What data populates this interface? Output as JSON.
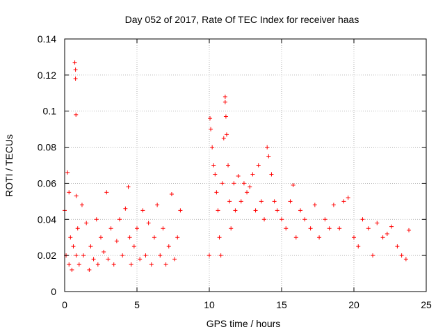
{
  "chart_data": {
    "type": "scatter",
    "title": "Day 052 of 2017, Rate Of TEC Index for receiver haas",
    "xlabel": "GPS time / hours",
    "ylabel": "ROTI / TECUs",
    "xlim": [
      0,
      25
    ],
    "ylim": [
      0,
      0.14
    ],
    "xticks": [
      "0",
      "5",
      "10",
      "15",
      "20",
      "25"
    ],
    "yticks": [
      "0",
      "0.02",
      "0.04",
      "0.06",
      "0.08",
      "0.1",
      "0.12",
      "0.14"
    ],
    "grid": true,
    "marker": "+",
    "color": "#ff0000",
    "series": [
      {
        "x": [
          0.0,
          0.1,
          0.2,
          0.3,
          0.3,
          0.4,
          0.5,
          0.6,
          0.7,
          0.75,
          0.75,
          0.78,
          0.8,
          0.8,
          0.9,
          1.0,
          1.2,
          1.3,
          1.5,
          1.7,
          1.8,
          2.0,
          2.2,
          2.3,
          2.5,
          2.7,
          2.9,
          3.0,
          3.2,
          3.4,
          3.6,
          3.8,
          4.0,
          4.2,
          4.4,
          4.5,
          4.6,
          4.8,
          5.0,
          5.2,
          5.4,
          5.6,
          5.8,
          6.0,
          6.2,
          6.4,
          6.6,
          6.8,
          7.0,
          7.2,
          7.4,
          7.6,
          7.8,
          8.0,
          10.0,
          10.05,
          10.1,
          10.2,
          10.3,
          10.4,
          10.5,
          10.6,
          10.7,
          10.8,
          10.9,
          11.0,
          11.1,
          11.1,
          11.15,
          11.2,
          11.3,
          11.4,
          11.5,
          11.7,
          11.8,
          12.0,
          12.2,
          12.4,
          12.6,
          12.8,
          13.0,
          13.2,
          13.4,
          13.6,
          13.8,
          14.0,
          14.1,
          14.3,
          14.5,
          14.7,
          15.0,
          15.3,
          15.6,
          15.8,
          16.0,
          16.3,
          16.6,
          17.0,
          17.3,
          17.6,
          18.0,
          18.3,
          18.6,
          19.0,
          19.3,
          19.6,
          20.0,
          20.3,
          20.6,
          21.0,
          21.3,
          21.6,
          22.0,
          22.3,
          22.6,
          23.0,
          23.3,
          23.6,
          23.8
        ],
        "y": [
          0.045,
          0.02,
          0.066,
          0.055,
          0.015,
          0.03,
          0.012,
          0.025,
          0.127,
          0.123,
          0.118,
          0.098,
          0.053,
          0.02,
          0.035,
          0.015,
          0.048,
          0.02,
          0.038,
          0.012,
          0.025,
          0.018,
          0.04,
          0.015,
          0.03,
          0.022,
          0.055,
          0.018,
          0.035,
          0.015,
          0.028,
          0.04,
          0.02,
          0.046,
          0.058,
          0.03,
          0.015,
          0.025,
          0.035,
          0.018,
          0.045,
          0.02,
          0.038,
          0.015,
          0.03,
          0.048,
          0.02,
          0.035,
          0.015,
          0.025,
          0.054,
          0.018,
          0.03,
          0.045,
          0.02,
          0.096,
          0.09,
          0.08,
          0.07,
          0.065,
          0.055,
          0.045,
          0.03,
          0.02,
          0.06,
          0.085,
          0.108,
          0.105,
          0.097,
          0.087,
          0.07,
          0.05,
          0.035,
          0.06,
          0.045,
          0.064,
          0.05,
          0.06,
          0.055,
          0.058,
          0.065,
          0.045,
          0.07,
          0.05,
          0.04,
          0.08,
          0.075,
          0.065,
          0.05,
          0.045,
          0.04,
          0.035,
          0.05,
          0.059,
          0.03,
          0.045,
          0.04,
          0.035,
          0.048,
          0.03,
          0.04,
          0.035,
          0.048,
          0.035,
          0.05,
          0.052,
          0.03,
          0.025,
          0.04,
          0.035,
          0.02,
          0.038,
          0.03,
          0.032,
          0.036,
          0.025,
          0.02,
          0.018,
          0.034
        ]
      }
    ]
  }
}
